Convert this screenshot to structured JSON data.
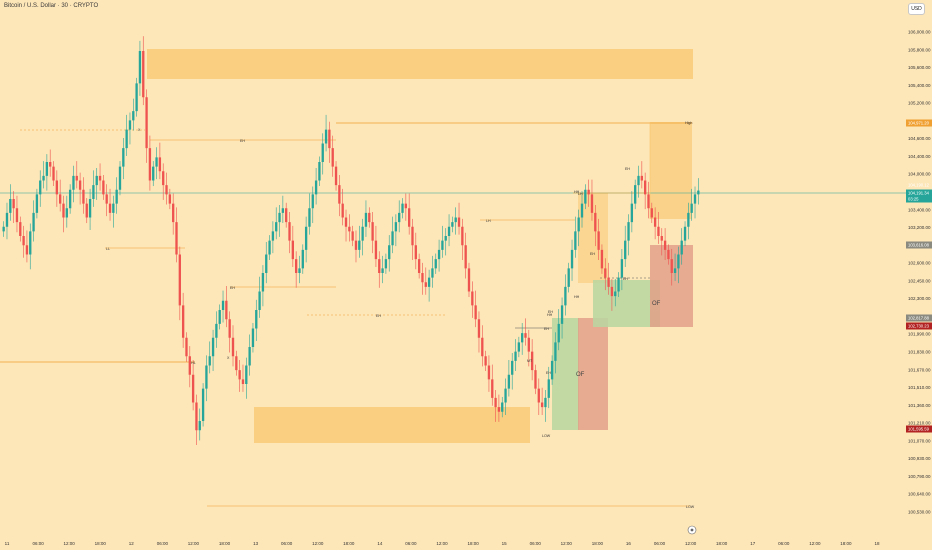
{
  "header": {
    "title": "Bitcoin / U.S. Dollar · 30 · CRYPTO",
    "currency_button": "USD"
  },
  "colors": {
    "background": "#fde6b8",
    "up": "#26a69a",
    "down": "#ef5350",
    "zone_orange": "#f9c46b",
    "zone_green": "#b8d6a0",
    "zone_red": "#e2a08a",
    "level_line": "#f0a030",
    "current_price_line": "#26a69a",
    "high_badge": "#f0a030",
    "price_badge": "#26a69a",
    "gray_badge": "#8a8a80",
    "red_badge": "#b22222"
  },
  "chart_data": {
    "type": "candlestick",
    "y_axis": {
      "ticks": [
        "106,000.00",
        "105,800.00",
        "105,600.00",
        "105,400.00",
        "105,200.00",
        "104,800.00",
        "104,600.00",
        "104,400.00",
        "104,000.00",
        "103,800.00",
        "103,400.00",
        "103,200.00",
        "103,000.00",
        "102,600.00",
        "102,450.00",
        "102,300.00",
        "102,150.00",
        "101,990.00",
        "101,830.00",
        "101,670.00",
        "101,510.00",
        "101,360.00",
        "101,210.00",
        "101,070.00",
        "100,930.00",
        "100,790.00",
        "100,640.00",
        "100,530.00"
      ],
      "ylim": [
        100500,
        106100
      ]
    },
    "x_axis": {
      "ticks": [
        "11",
        "06:00",
        "12:00",
        "18:00",
        "12",
        "06:00",
        "12:00",
        "18:00",
        "13",
        "06:00",
        "12:00",
        "18:00",
        "14",
        "06:00",
        "12:00",
        "18:00",
        "15",
        "06:00",
        "12:00",
        "18:00",
        "16",
        "06:00",
        "12:00",
        "18:00",
        "17",
        "06:00",
        "12:00",
        "18:00",
        "18"
      ]
    },
    "price_badges": [
      {
        "value": "104,971.20",
        "style": "orange"
      },
      {
        "value": "104,190.12",
        "style": "plain"
      },
      {
        "value": "104,191.34",
        "style": "teal"
      },
      {
        "value": "03:25",
        "style": "teal"
      },
      {
        "value": "103,616.08",
        "style": "gray"
      },
      {
        "value": "102,817.88",
        "style": "gray"
      },
      {
        "value": "102,730.23",
        "style": "red"
      },
      {
        "value": "101,595.59",
        "style": "red"
      }
    ],
    "annotations": [
      "High",
      "EH",
      "X",
      "LL",
      "EH",
      "HL",
      "X",
      "EH",
      "LH",
      "EH",
      "LH",
      "HH",
      "EH",
      "MT",
      "EH",
      "LOW",
      "HH",
      "EH",
      "EH",
      "HH",
      "EH",
      "LOW"
    ],
    "order_flow_labels": [
      "OF",
      "OF"
    ],
    "levels": {
      "high": 104971,
      "current": 104191,
      "low": 100800
    },
    "closes": [
      103800,
      103950,
      104100,
      104000,
      103850,
      103700,
      103600,
      103500,
      103750,
      103950,
      104150,
      104300,
      104350,
      104500,
      104450,
      104300,
      104150,
      104050,
      103900,
      104000,
      104200,
      104350,
      104300,
      104200,
      104050,
      103900,
      104100,
      104250,
      104350,
      104300,
      104150,
      104050,
      103950,
      104050,
      104200,
      104450,
      104650,
      104850,
      104950,
      105050,
      105350,
      105700,
      105200,
      104650,
      104300,
      104450,
      104550,
      104400,
      104250,
      104150,
      104050,
      103850,
      103500,
      102950,
      102600,
      102400,
      102200,
      101900,
      101600,
      101700,
      102050,
      102300,
      102400,
      102600,
      102750,
      102900,
      103000,
      102800,
      102600,
      102400,
      102250,
      102150,
      102100,
      102300,
      102500,
      102700,
      102900,
      103100,
      103300,
      103500,
      103650,
      103750,
      103850,
      103950,
      104000,
      103850,
      103650,
      103450,
      103300,
      103350,
      103550,
      103800,
      104000,
      104150,
      104300,
      104500,
      104700,
      104850,
      104650,
      104450,
      104250,
      104050,
      103900,
      103800,
      103750,
      103650,
      103550,
      103650,
      103800,
      103950,
      103850,
      103650,
      103450,
      103300,
      103350,
      103450,
      103600,
      103750,
      103850,
      103950,
      104050,
      104000,
      103800,
      103600,
      103450,
      103300,
      103200,
      103150,
      103250,
      103350,
      103450,
      103550,
      103650,
      103700,
      103800,
      103850,
      103900,
      103800,
      103600,
      103350,
      103100,
      102950,
      102800,
      102600,
      102400,
      102300,
      102150,
      101950,
      101850,
      101800,
      101900,
      102050,
      102200,
      102350,
      102450,
      102550,
      102650,
      102600,
      102450,
      102250,
      102050,
      101900,
      101850,
      101950,
      102150,
      102350,
      102550,
      102750,
      102950,
      103150,
      103350,
      103550,
      103750,
      103900,
      104050,
      104200,
      104150,
      103950,
      103750,
      103550,
      103350,
      103250,
      103150,
      103050,
      103100,
      103250,
      103450,
      103650,
      103850,
      104050,
      104250,
      104350,
      104300,
      104150,
      104000,
      103900,
      103800,
      103700,
      103650,
      103550,
      103450,
      103300,
      103350,
      103500,
      103650,
      103800,
      103950,
      104050,
      104150,
      104191
    ]
  }
}
